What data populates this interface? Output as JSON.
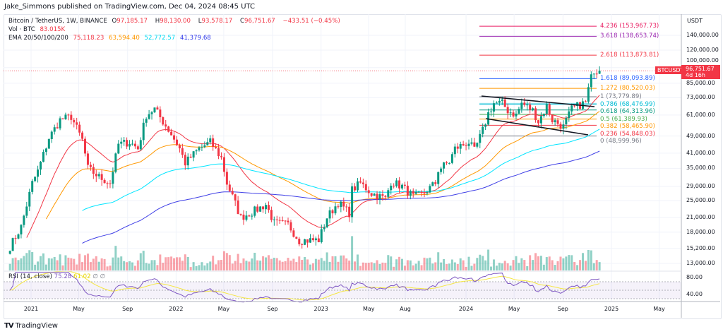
{
  "publisher_line": "Jake_Simmons published on TradingView.com, Dec 04, 2024 08:45 UTC",
  "legend": {
    "symbol": "Bitcoin / TetherUS, 1W, BINANCE",
    "open_label": "O",
    "open": "97,185.17",
    "high_label": "H",
    "high": "98,130.00",
    "low_label": "L",
    "low": "93,578.17",
    "close_label": "C",
    "close": "96,751.67",
    "change": "−433.51 (−0.45%)",
    "vol_label": "Vol · BTC",
    "vol": "83.015K",
    "ema_label": "EMA 20/50/100/200",
    "ema_values": [
      "75,118.23",
      "63,594.40",
      "52,772.57",
      "41,379.68"
    ]
  },
  "rsi_legend": {
    "label": "RSI (14, close)",
    "value": "75.28",
    "ma": "61.02",
    "extra1": "∅",
    "extra2": "∅"
  },
  "price_axis": {
    "unit": "USDT",
    "ticks": [
      "140,000.00",
      "120,000.00",
      "100,000.00",
      "85,000.00",
      "73,000.00",
      "61,000.00",
      "49,000.00",
      "41,000.00",
      "35,000.00",
      "29,000.00",
      "25,000.00",
      "21,000.00",
      "18,000.00",
      "15,200.00",
      "13,000.00"
    ],
    "current_symbol": "BTCUSDT",
    "current_price": "96,751.67",
    "countdown": "4d 16h"
  },
  "rsi_axis": {
    "ticks": [
      "80.00",
      "40.00"
    ]
  },
  "time_axis": [
    "2021",
    "May",
    "Sep",
    "2022",
    "May",
    "Sep",
    "2023",
    "May",
    "Aug",
    "2024",
    "May",
    "Sep",
    "2025",
    "May"
  ],
  "footer": {
    "brand": "TradingView"
  },
  "colors": {
    "up": "#089981",
    "down": "#f23645",
    "ema20": "#f23645",
    "ema50": "#ff9800",
    "ema100": "#00e5ff",
    "ema200": "#3f3fe6",
    "rsi": "#7e57c2",
    "rsi_ma": "#f5e642"
  },
  "chart_data": {
    "type": "candlestick",
    "scale": "log",
    "interval": "1W",
    "grid": true,
    "ylim": [
      12000,
      165000
    ],
    "xlim": [
      "2020-11-02",
      "2025-06-30"
    ],
    "weekly_close_approx": [
      [
        "2020-11-09",
        15500
      ],
      [
        "2020-12-07",
        19000
      ],
      [
        "2021-01-04",
        30000
      ],
      [
        "2021-01-18",
        34000
      ],
      [
        "2021-02-15",
        48000
      ],
      [
        "2021-03-15",
        58000
      ],
      [
        "2021-04-12",
        60000
      ],
      [
        "2021-05-10",
        47000
      ],
      [
        "2021-05-24",
        35000
      ],
      [
        "2021-06-21",
        32000
      ],
      [
        "2021-07-19",
        30000
      ],
      [
        "2021-08-09",
        45000
      ],
      [
        "2021-09-06",
        46000
      ],
      [
        "2021-09-27",
        43000
      ],
      [
        "2021-10-18",
        61000
      ],
      [
        "2021-11-08",
        65000
      ],
      [
        "2021-11-29",
        57000
      ],
      [
        "2021-12-20",
        50000
      ],
      [
        "2022-01-10",
        43000
      ],
      [
        "2022-01-24",
        37000
      ],
      [
        "2022-02-28",
        43000
      ],
      [
        "2022-03-28",
        46000
      ],
      [
        "2022-04-25",
        39000
      ],
      [
        "2022-05-09",
        30000
      ],
      [
        "2022-06-13",
        21000
      ],
      [
        "2022-07-18",
        22500
      ],
      [
        "2022-08-15",
        24000
      ],
      [
        "2022-09-05",
        19800
      ],
      [
        "2022-10-10",
        19500
      ],
      [
        "2022-11-07",
        16500
      ],
      [
        "2022-12-26",
        16600
      ],
      [
        "2023-01-16",
        21000
      ],
      [
        "2023-02-13",
        24500
      ],
      [
        "2023-03-13",
        22000
      ],
      [
        "2023-03-20",
        28000
      ],
      [
        "2023-04-10",
        30000
      ],
      [
        "2023-05-08",
        27000
      ],
      [
        "2023-06-12",
        25500
      ],
      [
        "2023-06-26",
        30500
      ],
      [
        "2023-07-24",
        29000
      ],
      [
        "2023-08-21",
        26000
      ],
      [
        "2023-09-11",
        26500
      ],
      [
        "2023-10-16",
        30000
      ],
      [
        "2023-10-23",
        34500
      ],
      [
        "2023-11-20",
        37500
      ],
      [
        "2023-12-04",
        43000
      ],
      [
        "2024-01-08",
        46000
      ],
      [
        "2024-01-22",
        42000
      ],
      [
        "2024-02-12",
        52000
      ],
      [
        "2024-02-26",
        62000
      ],
      [
        "2024-03-11",
        69000
      ],
      [
        "2024-04-01",
        69000
      ],
      [
        "2024-04-15",
        64000
      ],
      [
        "2024-05-06",
        61000
      ],
      [
        "2024-05-20",
        69000
      ],
      [
        "2024-06-17",
        64000
      ],
      [
        "2024-07-01",
        57000
      ],
      [
        "2024-07-22",
        67000
      ],
      [
        "2024-08-05",
        58000
      ],
      [
        "2024-09-02",
        54000
      ],
      [
        "2024-09-23",
        65000
      ],
      [
        "2024-10-14",
        68000
      ],
      [
        "2024-10-28",
        69500
      ],
      [
        "2024-11-04",
        80000
      ],
      [
        "2024-11-11",
        90000
      ],
      [
        "2024-11-18",
        98000
      ],
      [
        "2024-11-25",
        97000
      ],
      [
        "2024-12-02",
        96751.67
      ]
    ],
    "indicators": [
      "EMA 20",
      "EMA 50",
      "EMA 100",
      "EMA 200",
      "Volume",
      "RSI 14"
    ],
    "fib_levels": [
      {
        "ratio": "4.236",
        "price": "153,967.73",
        "value": 153967.73,
        "color": "#e91e63"
      },
      {
        "ratio": "3.618",
        "price": "138,653.74",
        "value": 138653.74,
        "color": "#9c27b0"
      },
      {
        "ratio": "2.618",
        "price": "113,873.81",
        "value": 113873.81,
        "color": "#f23645"
      },
      {
        "ratio": "1.618",
        "price": "89,093.89",
        "value": 89093.89,
        "color": "#2962ff"
      },
      {
        "ratio": "1.272",
        "price": "80,520.03",
        "value": 80520.03,
        "color": "#ff9800"
      },
      {
        "ratio": "1",
        "price": "73,779.89",
        "value": 73779.89,
        "color": "#787b86"
      },
      {
        "ratio": "0.786",
        "price": "68,476.99",
        "value": 68476.99,
        "color": "#00bcd4"
      },
      {
        "ratio": "0.618",
        "price": "64,313.96",
        "value": 64313.96,
        "color": "#089981"
      },
      {
        "ratio": "0.5",
        "price": "61,389.93",
        "value": 61389.93,
        "color": "#4caf50"
      },
      {
        "ratio": "0.382",
        "price": "58,465.90",
        "value": 58465.9,
        "color": "#ff9800"
      },
      {
        "ratio": "0.236",
        "price": "54,848.03",
        "value": 54848.03,
        "color": "#f23645"
      },
      {
        "ratio": "0",
        "price": "48,999.96",
        "value": 48999.96,
        "color": "#787b86"
      }
    ]
  }
}
